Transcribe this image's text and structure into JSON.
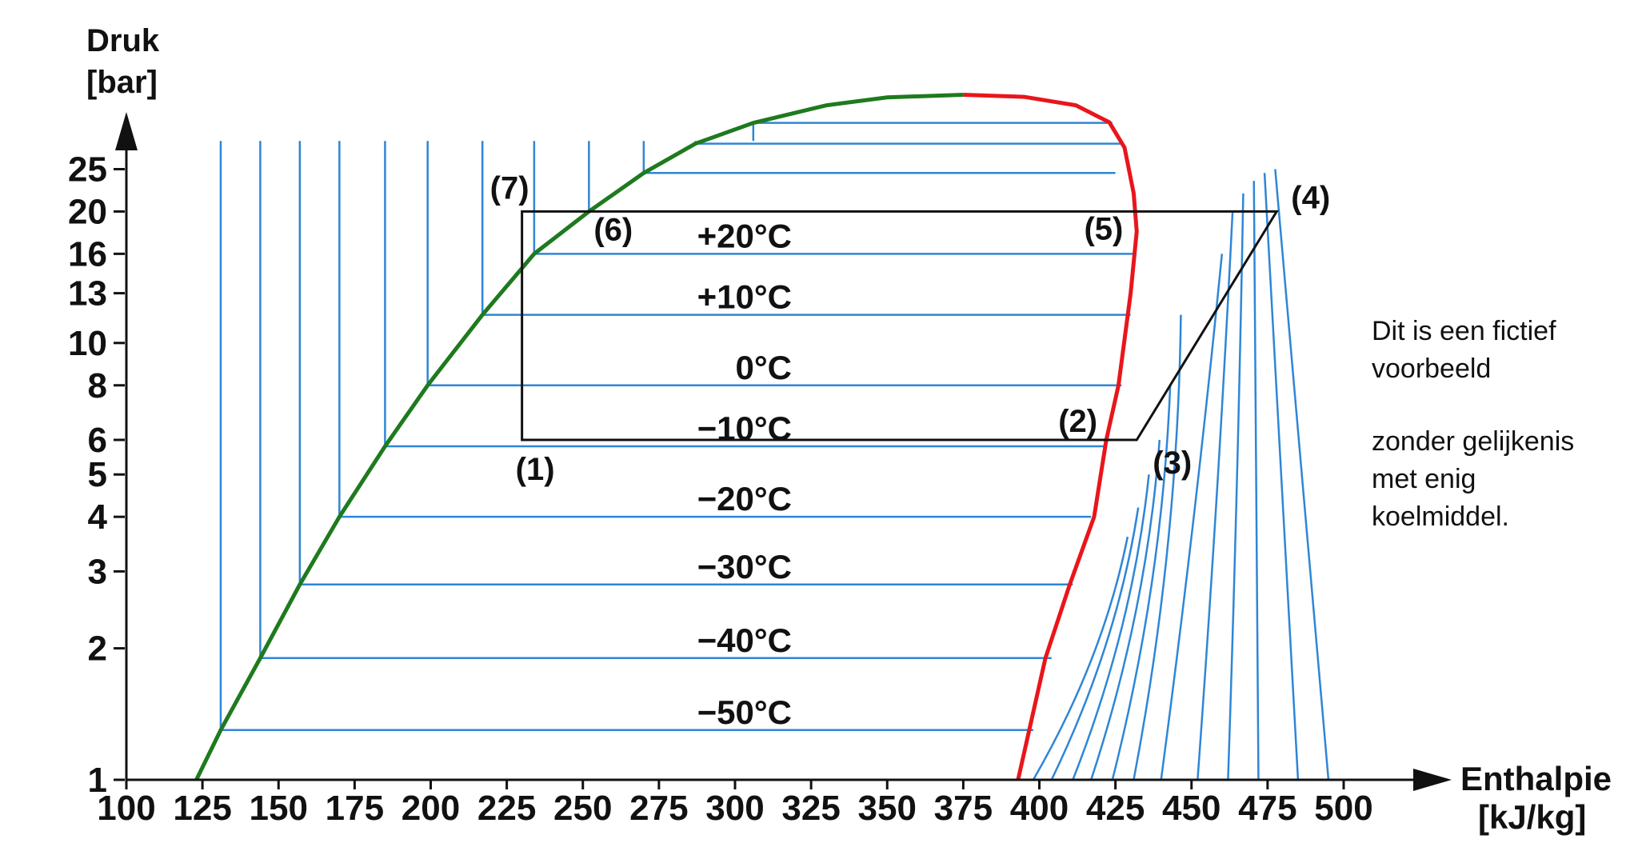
{
  "y_axis": {
    "title_line1": "Druk",
    "title_line2": "[bar]"
  },
  "x_axis": {
    "title_line1": "Enthalpie",
    "title_line2": "[kJ/kg]"
  },
  "chart_data": {
    "type": "line",
    "y_scale": "log",
    "xlim": [
      100,
      500
    ],
    "ylim": [
      1,
      40
    ],
    "x_ticks": [
      100,
      125,
      150,
      175,
      200,
      225,
      250,
      275,
      300,
      325,
      350,
      375,
      400,
      425,
      450,
      475,
      500
    ],
    "y_ticks": [
      1,
      2,
      3,
      4,
      5,
      6,
      8,
      10,
      13,
      16,
      20,
      25
    ],
    "saturated_liquid": [
      [
        123,
        1
      ],
      [
        131,
        1.3
      ],
      [
        144,
        1.9
      ],
      [
        157,
        2.8
      ],
      [
        170,
        4
      ],
      [
        185,
        5.8
      ],
      [
        199,
        8
      ],
      [
        217,
        11.6
      ],
      [
        234,
        16
      ],
      [
        252,
        20
      ],
      [
        270,
        24.5
      ],
      [
        287,
        28.6
      ],
      [
        306,
        31.9
      ],
      [
        330,
        35
      ],
      [
        350,
        36.5
      ],
      [
        375,
        37
      ]
    ],
    "saturated_vapor": [
      [
        375,
        37
      ],
      [
        395,
        36.6
      ],
      [
        412,
        35
      ],
      [
        423,
        32
      ],
      [
        428,
        28
      ],
      [
        431,
        22
      ],
      [
        432,
        18
      ],
      [
        430,
        13
      ],
      [
        426,
        8
      ],
      [
        422,
        6
      ],
      [
        418,
        4
      ],
      [
        410,
        2.8
      ],
      [
        402,
        1.9
      ],
      [
        393,
        1
      ]
    ],
    "isotherms": [
      {
        "label": "+20°C",
        "p": 16,
        "h_liq": 234,
        "h_vap": 431
      },
      {
        "label": "+10°C",
        "p": 11.6,
        "h_liq": 217,
        "h_vap": 430
      },
      {
        "label": "0°C",
        "p": 8,
        "h_liq": 199,
        "h_vap": 427
      },
      {
        "label": "−10°C",
        "p": 5.8,
        "h_liq": 185,
        "h_vap": 422
      },
      {
        "label": "−20°C",
        "p": 4,
        "h_liq": 170,
        "h_vap": 417
      },
      {
        "label": "−30°C",
        "p": 2.8,
        "h_liq": 157,
        "h_vap": 411
      },
      {
        "label": "−40°C",
        "p": 1.9,
        "h_liq": 144,
        "h_vap": 404
      },
      {
        "label": "−50°C",
        "p": 1.3,
        "h_liq": 131,
        "h_vap": 398
      }
    ],
    "cycle": [
      [
        230,
        20
      ],
      [
        478,
        20
      ],
      [
        432,
        6
      ],
      [
        230,
        6
      ]
    ],
    "points": [
      {
        "label": "(1)",
        "h": 230,
        "p": 6
      },
      {
        "label": "(2)",
        "h": 422,
        "p": 6
      },
      {
        "label": "(3)",
        "h": 432,
        "p": 6
      },
      {
        "label": "(4)",
        "h": 478,
        "p": 20
      },
      {
        "label": "(5)",
        "h": 431,
        "p": 20
      },
      {
        "label": "(6)",
        "h": 252,
        "p": 20
      },
      {
        "label": "(7)",
        "h": 230,
        "p": 20
      }
    ],
    "colors": {
      "liquid": "#1e7a1e",
      "vapor": "#e8161b",
      "grid": "#2e86d6",
      "cycle": "#111111"
    }
  },
  "note": {
    "line1": "Dit is een fictief",
    "line2": "voorbeeld",
    "line3": "zonder gelijkenis",
    "line4": "met enig",
    "line5": "koelmiddel."
  }
}
